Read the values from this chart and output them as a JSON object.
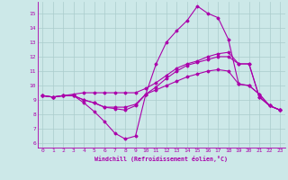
{
  "xlabel": "Windchill (Refroidissement éolien,°C)",
  "background_color": "#cce8e8",
  "line_color": "#aa00aa",
  "grid_color": "#aacccc",
  "xlim": [
    -0.5,
    23.5
  ],
  "ylim": [
    5.7,
    15.8
  ],
  "xticks": [
    0,
    1,
    2,
    3,
    4,
    5,
    6,
    7,
    8,
    9,
    10,
    11,
    12,
    13,
    14,
    15,
    16,
    17,
    18,
    19,
    20,
    21,
    22,
    23
  ],
  "yticks": [
    6,
    7,
    8,
    9,
    10,
    11,
    12,
    13,
    14,
    15
  ],
  "series": [
    [
      9.3,
      9.2,
      9.3,
      9.3,
      9.0,
      8.8,
      8.5,
      8.5,
      8.5,
      8.7,
      9.4,
      9.7,
      10.0,
      10.3,
      10.6,
      10.8,
      11.0,
      11.1,
      11.0,
      10.1,
      10.0,
      9.4,
      8.6,
      8.3
    ],
    [
      9.3,
      9.2,
      9.3,
      9.3,
      9.0,
      8.8,
      8.5,
      8.4,
      8.3,
      8.6,
      9.4,
      9.9,
      10.5,
      11.0,
      11.4,
      11.6,
      11.8,
      12.0,
      12.0,
      11.5,
      11.5,
      9.2,
      8.6,
      8.3
    ],
    [
      9.3,
      9.2,
      9.3,
      9.4,
      9.5,
      9.5,
      9.5,
      9.5,
      9.5,
      9.5,
      9.8,
      10.2,
      10.7,
      11.2,
      11.5,
      11.7,
      12.0,
      12.2,
      12.3,
      11.5,
      11.5,
      9.2,
      8.6,
      8.3
    ],
    [
      9.3,
      9.2,
      9.3,
      9.3,
      8.8,
      8.2,
      7.5,
      6.7,
      6.3,
      6.5,
      9.4,
      11.5,
      13.0,
      13.8,
      14.5,
      15.5,
      15.0,
      14.7,
      13.2,
      10.1,
      10.0,
      9.4,
      8.6,
      8.3
    ]
  ]
}
